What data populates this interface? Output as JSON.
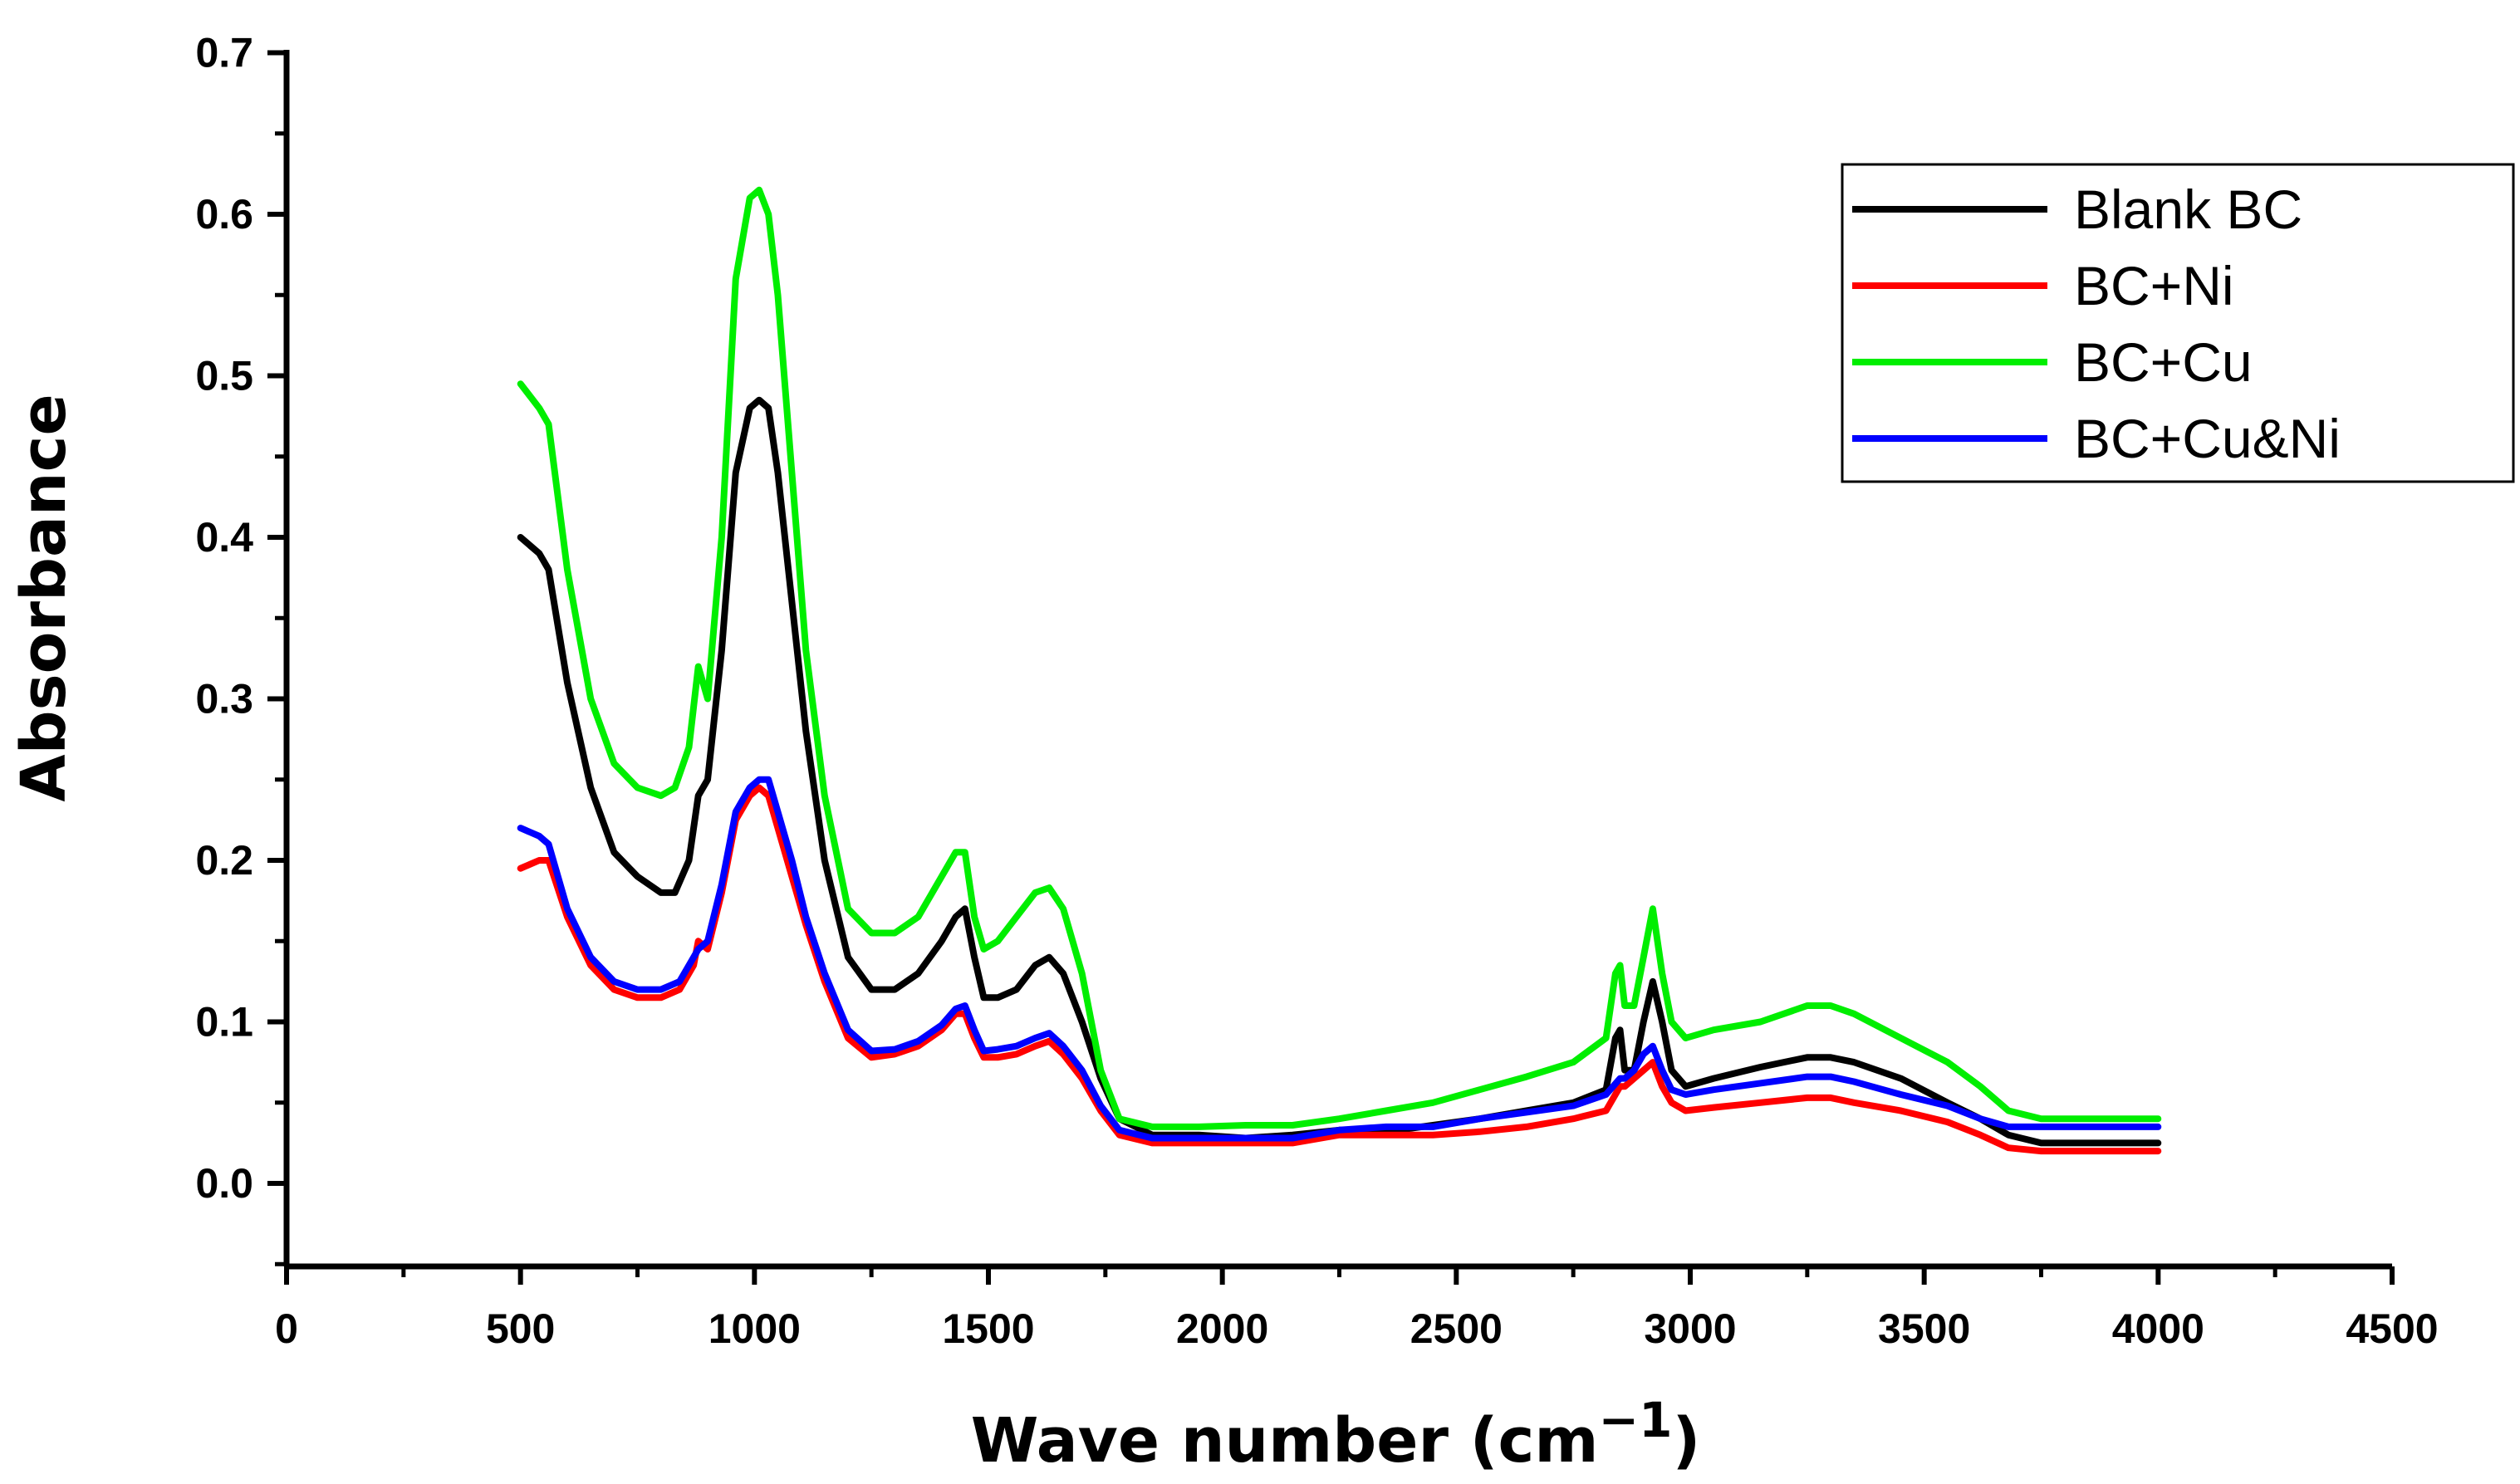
{
  "chart_data": {
    "type": "line",
    "title": "",
    "xlabel": "Wave number (cm",
    "xlabel_superscript": "−1",
    "xlabel_close": ")",
    "ylabel": "Absorbance",
    "xlim": [
      0,
      4500
    ],
    "ylim": [
      -0.05,
      0.7
    ],
    "x_ticks": [
      0,
      500,
      1000,
      1500,
      2000,
      2500,
      3000,
      3500,
      4000,
      4500
    ],
    "x_tick_labels": [
      "0",
      "500",
      "1000",
      "1500",
      "2000",
      "2500",
      "3000",
      "3500",
      "4000",
      "4500"
    ],
    "y_ticks": [
      0.0,
      0.1,
      0.2,
      0.3,
      0.4,
      0.5,
      0.6,
      0.7
    ],
    "y_tick_labels": [
      "0.0",
      "0.1",
      "0.2",
      "0.3",
      "0.4",
      "0.5",
      "0.6",
      "0.7"
    ],
    "grid": false,
    "legend_position": "top-right",
    "series": [
      {
        "name": "Blank BC",
        "color": "#000000",
        "x": [
          500,
          540,
          560,
          600,
          650,
          700,
          750,
          800,
          830,
          860,
          880,
          900,
          930,
          960,
          990,
          1010,
          1030,
          1050,
          1080,
          1110,
          1150,
          1200,
          1250,
          1300,
          1350,
          1400,
          1430,
          1450,
          1470,
          1490,
          1520,
          1560,
          1600,
          1630,
          1660,
          1700,
          1740,
          1780,
          1850,
          1950,
          2050,
          2150,
          2250,
          2350,
          2450,
          2550,
          2650,
          2750,
          2820,
          2840,
          2850,
          2860,
          2880,
          2900,
          2920,
          2940,
          2960,
          2990,
          3050,
          3150,
          3250,
          3300,
          3350,
          3450,
          3550,
          3620,
          3680,
          3750,
          3850,
          4000
        ],
        "y": [
          0.4,
          0.39,
          0.38,
          0.31,
          0.245,
          0.205,
          0.19,
          0.18,
          0.18,
          0.2,
          0.24,
          0.25,
          0.33,
          0.44,
          0.48,
          0.485,
          0.48,
          0.44,
          0.36,
          0.28,
          0.2,
          0.14,
          0.12,
          0.12,
          0.13,
          0.15,
          0.165,
          0.17,
          0.14,
          0.115,
          0.115,
          0.12,
          0.135,
          0.14,
          0.13,
          0.1,
          0.065,
          0.04,
          0.03,
          0.03,
          0.028,
          0.03,
          0.033,
          0.032,
          0.036,
          0.04,
          0.045,
          0.05,
          0.058,
          0.09,
          0.095,
          0.07,
          0.07,
          0.1,
          0.125,
          0.1,
          0.07,
          0.06,
          0.065,
          0.072,
          0.078,
          0.078,
          0.075,
          0.065,
          0.05,
          0.04,
          0.03,
          0.025,
          0.025,
          0.025
        ]
      },
      {
        "name": "BC+Ni",
        "color": "#ff0000",
        "x": [
          500,
          540,
          560,
          600,
          650,
          700,
          750,
          800,
          840,
          870,
          880,
          900,
          930,
          960,
          990,
          1010,
          1030,
          1050,
          1080,
          1110,
          1150,
          1200,
          1250,
          1300,
          1350,
          1400,
          1430,
          1450,
          1470,
          1490,
          1520,
          1560,
          1600,
          1630,
          1660,
          1700,
          1740,
          1780,
          1850,
          1950,
          2050,
          2150,
          2250,
          2350,
          2450,
          2550,
          2650,
          2750,
          2820,
          2850,
          2860,
          2880,
          2900,
          2920,
          2940,
          2960,
          2990,
          3050,
          3150,
          3250,
          3300,
          3350,
          3450,
          3550,
          3620,
          3680,
          3750,
          3850,
          4000
        ],
        "y": [
          0.195,
          0.2,
          0.2,
          0.165,
          0.135,
          0.12,
          0.115,
          0.115,
          0.12,
          0.135,
          0.15,
          0.145,
          0.18,
          0.225,
          0.24,
          0.245,
          0.24,
          0.22,
          0.19,
          0.16,
          0.125,
          0.09,
          0.078,
          0.08,
          0.085,
          0.095,
          0.105,
          0.105,
          0.09,
          0.078,
          0.078,
          0.08,
          0.085,
          0.088,
          0.08,
          0.065,
          0.045,
          0.03,
          0.025,
          0.025,
          0.025,
          0.025,
          0.03,
          0.03,
          0.03,
          0.032,
          0.035,
          0.04,
          0.045,
          0.06,
          0.06,
          0.065,
          0.07,
          0.075,
          0.06,
          0.05,
          0.045,
          0.047,
          0.05,
          0.053,
          0.053,
          0.05,
          0.045,
          0.038,
          0.03,
          0.022,
          0.02,
          0.02,
          0.02
        ]
      },
      {
        "name": "BC+Cu",
        "color": "#00ee00",
        "x": [
          500,
          540,
          560,
          600,
          650,
          700,
          750,
          800,
          830,
          860,
          880,
          900,
          930,
          960,
          990,
          1010,
          1030,
          1050,
          1080,
          1110,
          1150,
          1200,
          1250,
          1300,
          1350,
          1400,
          1430,
          1450,
          1470,
          1490,
          1520,
          1560,
          1600,
          1630,
          1660,
          1700,
          1740,
          1780,
          1850,
          1950,
          2050,
          2150,
          2250,
          2350,
          2450,
          2550,
          2650,
          2750,
          2820,
          2840,
          2850,
          2860,
          2880,
          2900,
          2920,
          2940,
          2960,
          2990,
          3050,
          3150,
          3250,
          3300,
          3350,
          3450,
          3550,
          3620,
          3680,
          3750,
          3850,
          4000
        ],
        "y": [
          0.495,
          0.48,
          0.47,
          0.38,
          0.3,
          0.26,
          0.245,
          0.24,
          0.245,
          0.27,
          0.32,
          0.3,
          0.4,
          0.56,
          0.61,
          0.615,
          0.6,
          0.55,
          0.44,
          0.33,
          0.24,
          0.17,
          0.155,
          0.155,
          0.165,
          0.19,
          0.205,
          0.205,
          0.165,
          0.145,
          0.15,
          0.165,
          0.18,
          0.183,
          0.17,
          0.13,
          0.07,
          0.04,
          0.035,
          0.035,
          0.036,
          0.036,
          0.04,
          0.045,
          0.05,
          0.058,
          0.066,
          0.075,
          0.09,
          0.13,
          0.135,
          0.11,
          0.11,
          0.14,
          0.17,
          0.13,
          0.1,
          0.09,
          0.095,
          0.1,
          0.11,
          0.11,
          0.105,
          0.09,
          0.075,
          0.06,
          0.045,
          0.04,
          0.04,
          0.04
        ]
      },
      {
        "name": "BC+Cu&Ni",
        "color": "#0000ff",
        "x": [
          500,
          540,
          560,
          600,
          650,
          700,
          750,
          800,
          840,
          870,
          880,
          900,
          930,
          960,
          990,
          1010,
          1030,
          1050,
          1080,
          1110,
          1150,
          1200,
          1250,
          1300,
          1350,
          1400,
          1430,
          1450,
          1470,
          1490,
          1520,
          1560,
          1600,
          1630,
          1660,
          1700,
          1740,
          1780,
          1850,
          1950,
          2050,
          2150,
          2250,
          2350,
          2450,
          2550,
          2650,
          2750,
          2820,
          2850,
          2860,
          2880,
          2900,
          2920,
          2940,
          2960,
          2990,
          3050,
          3150,
          3250,
          3300,
          3350,
          3450,
          3550,
          3620,
          3680,
          3750,
          3850,
          4000
        ],
        "y": [
          0.22,
          0.215,
          0.21,
          0.17,
          0.14,
          0.125,
          0.12,
          0.12,
          0.125,
          0.14,
          0.145,
          0.15,
          0.185,
          0.23,
          0.245,
          0.25,
          0.25,
          0.23,
          0.2,
          0.165,
          0.13,
          0.095,
          0.082,
          0.083,
          0.088,
          0.098,
          0.108,
          0.11,
          0.095,
          0.082,
          0.083,
          0.085,
          0.09,
          0.093,
          0.085,
          0.07,
          0.048,
          0.033,
          0.028,
          0.028,
          0.028,
          0.028,
          0.033,
          0.035,
          0.035,
          0.04,
          0.044,
          0.048,
          0.055,
          0.065,
          0.065,
          0.07,
          0.08,
          0.085,
          0.07,
          0.058,
          0.055,
          0.058,
          0.062,
          0.066,
          0.066,
          0.063,
          0.055,
          0.048,
          0.04,
          0.035,
          0.035,
          0.035,
          0.035
        ]
      }
    ]
  }
}
